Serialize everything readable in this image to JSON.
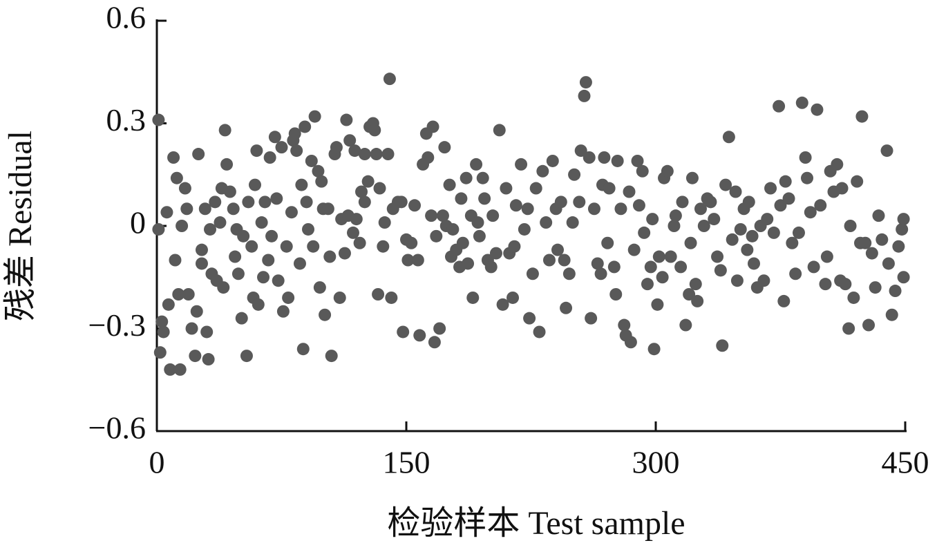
{
  "chart_data": {
    "type": "scatter",
    "x_label": "检验样本  Test sample",
    "y_label": "残差  Residual",
    "color": "#595959",
    "xlim": [
      0,
      450
    ],
    "xticks": [
      0,
      150,
      300,
      450
    ],
    "ylim": [
      -0.6,
      0.6
    ],
    "yticks": [
      {
        "value": -0.6,
        "label": "−0.6"
      },
      {
        "value": -0.3,
        "label": "−0.3"
      },
      0,
      0.3,
      0.6
    ],
    "x": [
      1,
      1,
      2,
      3,
      4,
      6,
      7,
      8,
      10,
      11,
      12,
      13,
      14,
      15,
      17,
      18,
      19,
      21,
      23,
      24,
      25,
      27,
      27,
      29,
      30,
      31,
      32,
      33,
      35,
      36,
      38,
      39,
      40,
      41,
      42,
      44,
      46,
      47,
      48,
      49,
      51,
      52,
      54,
      55,
      57,
      58,
      59,
      60,
      61,
      63,
      64,
      65,
      67,
      68,
      69,
      71,
      72,
      73,
      75,
      76,
      78,
      79,
      81,
      82,
      83,
      84,
      86,
      87,
      88,
      89,
      90,
      91,
      93,
      94,
      95,
      97,
      98,
      99,
      100,
      101,
      103,
      104,
      105,
      107,
      108,
      110,
      111,
      113,
      114,
      115,
      116,
      118,
      119,
      120,
      122,
      123,
      125,
      125,
      127,
      128,
      130,
      131,
      132,
      133,
      134,
      136,
      137,
      139,
      140,
      141,
      142,
      145,
      147,
      148,
      150,
      151,
      153,
      155,
      157,
      158,
      160,
      162,
      163,
      165,
      166,
      167,
      168,
      170,
      172,
      173,
      174,
      176,
      177,
      178,
      180,
      182,
      183,
      184,
      186,
      187,
      189,
      190,
      192,
      193,
      194,
      196,
      197,
      199,
      201,
      202,
      204,
      206,
      208,
      210,
      212,
      214,
      215,
      216,
      219,
      221,
      223,
      224,
      226,
      228,
      230,
      232,
      234,
      236,
      238,
      240,
      241,
      243,
      245,
      246,
      248,
      250,
      251,
      254,
      255,
      257,
      258,
      260,
      261,
      263,
      265,
      267,
      268,
      269,
      271,
      272,
      275,
      276,
      277,
      279,
      281,
      282,
      284,
      285,
      287,
      289,
      290,
      292,
      293,
      295,
      297,
      298,
      299,
      301,
      302,
      304,
      305,
      307,
      309,
      311,
      312,
      315,
      316,
      318,
      320,
      321,
      322,
      324,
      325,
      327,
      329,
      331,
      333,
      335,
      337,
      339,
      340,
      342,
      344,
      346,
      348,
      349,
      351,
      353,
      355,
      356,
      358,
      359,
      361,
      363,
      365,
      367,
      369,
      371,
      374,
      375,
      377,
      378,
      380,
      382,
      384,
      386,
      388,
      390,
      391,
      393,
      395,
      397,
      399,
      402,
      403,
      405,
      407,
      409,
      411,
      412,
      414,
      416,
      417,
      419,
      421,
      423,
      424,
      426,
      428,
      430,
      432,
      434,
      436,
      439,
      440,
      442,
      444,
      446,
      448,
      449,
      449
    ],
    "values": [
      0.31,
      -0.01,
      -0.37,
      -0.28,
      -0.31,
      0.04,
      -0.23,
      -0.42,
      0.2,
      -0.1,
      0.14,
      -0.2,
      -0.42,
      0.0,
      0.11,
      0.05,
      -0.2,
      -0.3,
      -0.38,
      -0.25,
      0.21,
      -0.07,
      -0.11,
      0.05,
      -0.31,
      -0.39,
      -0.01,
      -0.14,
      0.07,
      -0.16,
      0.01,
      0.11,
      -0.18,
      0.28,
      0.18,
      0.1,
      0.05,
      -0.09,
      -0.01,
      -0.14,
      -0.27,
      -0.03,
      -0.38,
      0.07,
      -0.06,
      -0.21,
      0.12,
      0.22,
      -0.23,
      0.01,
      -0.15,
      0.07,
      -0.1,
      0.2,
      -0.03,
      0.26,
      0.08,
      -0.16,
      0.23,
      -0.25,
      -0.06,
      -0.21,
      0.04,
      0.25,
      0.27,
      0.22,
      -0.11,
      0.12,
      -0.36,
      0.29,
      0.07,
      -0.01,
      0.19,
      -0.06,
      0.32,
      0.16,
      -0.18,
      0.13,
      0.05,
      -0.26,
      0.05,
      -0.09,
      -0.38,
      0.21,
      0.23,
      -0.21,
      0.02,
      -0.08,
      0.31,
      0.03,
      0.25,
      -0.02,
      0.22,
      0.02,
      -0.05,
      0.1,
      0.21,
      0.07,
      0.13,
      0.29,
      0.3,
      0.28,
      0.21,
      -0.2,
      0.11,
      -0.06,
      0.01,
      0.21,
      0.43,
      -0.21,
      0.05,
      0.07,
      0.07,
      -0.31,
      -0.04,
      -0.1,
      -0.05,
      0.06,
      -0.1,
      -0.32,
      0.18,
      0.27,
      0.2,
      0.03,
      0.29,
      -0.34,
      -0.03,
      -0.3,
      0.03,
      0.23,
      0.0,
      0.12,
      -0.09,
      -0.01,
      -0.07,
      -0.12,
      0.08,
      -0.05,
      0.14,
      -0.11,
      0.03,
      -0.21,
      0.18,
      0.01,
      -0.03,
      0.14,
      0.08,
      -0.1,
      -0.12,
      0.03,
      -0.08,
      0.28,
      -0.23,
      0.11,
      -0.08,
      -0.21,
      -0.06,
      0.06,
      0.18,
      -0.01,
      0.05,
      -0.27,
      -0.14,
      0.11,
      -0.31,
      0.16,
      0.01,
      -0.1,
      0.19,
      0.05,
      -0.07,
      0.07,
      -0.1,
      -0.24,
      -0.14,
      0.01,
      0.15,
      0.07,
      0.22,
      0.38,
      0.42,
      0.2,
      -0.27,
      0.05,
      -0.11,
      -0.14,
      0.12,
      0.2,
      -0.05,
      0.11,
      -0.12,
      -0.2,
      0.19,
      0.05,
      -0.29,
      -0.32,
      0.1,
      -0.34,
      -0.07,
      0.19,
      0.06,
      0.16,
      -0.02,
      -0.17,
      -0.12,
      0.02,
      -0.36,
      -0.23,
      -0.09,
      -0.15,
      0.14,
      0.16,
      -0.09,
      0.0,
      0.03,
      -0.12,
      0.07,
      -0.29,
      -0.2,
      -0.05,
      0.14,
      -0.17,
      -0.22,
      0.05,
      0.0,
      0.08,
      0.07,
      0.02,
      -0.09,
      -0.13,
      -0.35,
      0.12,
      0.26,
      -0.04,
      0.1,
      -0.16,
      -0.01,
      0.05,
      -0.07,
      0.07,
      -0.03,
      -0.11,
      -0.18,
      0.0,
      -0.16,
      0.02,
      0.11,
      -0.02,
      0.35,
      0.06,
      -0.22,
      0.13,
      0.08,
      -0.05,
      -0.14,
      -0.02,
      0.36,
      0.2,
      0.14,
      0.04,
      -0.12,
      0.34,
      0.06,
      -0.17,
      -0.09,
      0.16,
      0.1,
      0.18,
      -0.16,
      0.11,
      -0.17,
      -0.3,
      0.0,
      -0.21,
      0.13,
      -0.05,
      0.32,
      -0.05,
      -0.29,
      -0.08,
      -0.18,
      0.03,
      -0.04,
      0.22,
      -0.11,
      -0.26,
      -0.19,
      -0.06,
      -0.01,
      0.02,
      -0.15
    ]
  }
}
